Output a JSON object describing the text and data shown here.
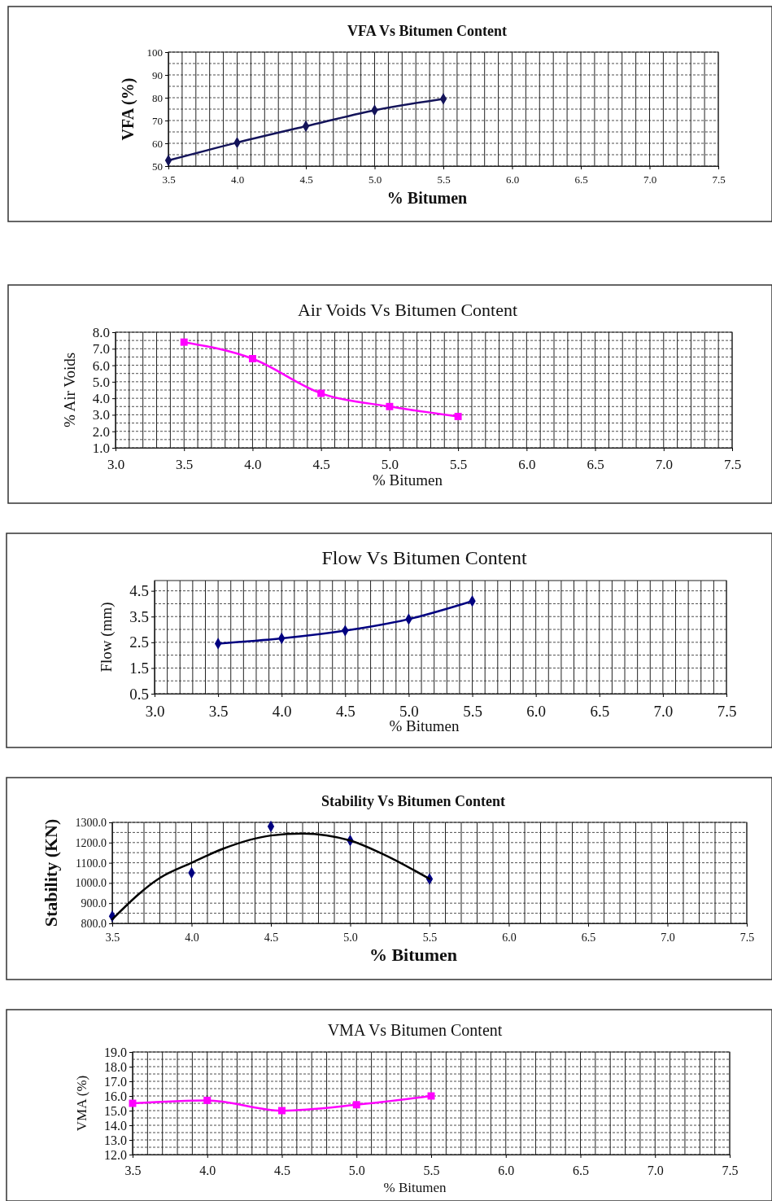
{
  "chart_data": [
    {
      "type": "line",
      "title": "VFA Vs Bitumen Content",
      "xlabel": "% Bitumen",
      "ylabel": "VFA (%)",
      "grid": true,
      "xlim": [
        3.5,
        7.5
      ],
      "ylim": [
        50,
        100
      ],
      "xticks": [
        {
          "value": 3.5,
          "label": "3.5"
        },
        {
          "value": 3.6,
          "label": null
        },
        {
          "value": 3.7,
          "label": null
        },
        {
          "value": 3.8,
          "label": null
        },
        {
          "value": 3.9,
          "label": null
        },
        {
          "value": 4.0,
          "label": "4.0"
        },
        {
          "value": 4.1,
          "label": null
        },
        {
          "value": 4.2,
          "label": null
        },
        {
          "value": 4.3,
          "label": null
        },
        {
          "value": 4.4,
          "label": null
        },
        {
          "value": 4.5,
          "label": "4.5"
        },
        {
          "value": 4.6,
          "label": null
        },
        {
          "value": 4.7,
          "label": null
        },
        {
          "value": 4.8,
          "label": null
        },
        {
          "value": 4.9,
          "label": null
        },
        {
          "value": 5.0,
          "label": "5.0"
        },
        {
          "value": 5.1,
          "label": null
        },
        {
          "value": 5.2,
          "label": null
        },
        {
          "value": 5.3,
          "label": null
        },
        {
          "value": 5.4,
          "label": null
        },
        {
          "value": 5.5,
          "label": "5.5"
        },
        {
          "value": 5.6,
          "label": null
        },
        {
          "value": 5.7,
          "label": null
        },
        {
          "value": 5.8,
          "label": null
        },
        {
          "value": 5.9,
          "label": null
        },
        {
          "value": 6.0,
          "label": "6.0"
        },
        {
          "value": 6.1,
          "label": null
        },
        {
          "value": 6.2,
          "label": null
        },
        {
          "value": 6.3,
          "label": null
        },
        {
          "value": 6.4,
          "label": null
        },
        {
          "value": 6.5,
          "label": "6.5"
        },
        {
          "value": 6.6,
          "label": null
        },
        {
          "value": 6.7,
          "label": null
        },
        {
          "value": 6.8,
          "label": null
        },
        {
          "value": 6.9,
          "label": null
        },
        {
          "value": 7.0,
          "label": "7.0"
        },
        {
          "value": 7.1,
          "label": null
        },
        {
          "value": 7.2,
          "label": null
        },
        {
          "value": 7.3,
          "label": null
        },
        {
          "value": 7.4,
          "label": null
        },
        {
          "value": 7.5,
          "label": "7.5"
        }
      ],
      "yticks": [
        50,
        {
          "value": 55,
          "label": null
        },
        60,
        {
          "value": 65,
          "label": null
        },
        70,
        {
          "value": 75,
          "label": null
        },
        80,
        {
          "value": 85,
          "label": null
        },
        90,
        {
          "value": 95,
          "label": null
        },
        100
      ],
      "series": [
        {
          "color": "#14145a",
          "marker": "diamond",
          "x": [
            3.5,
            4.0,
            4.5,
            5.0,
            5.5
          ],
          "values": [
            52.5,
            60.3,
            67.5,
            74.5,
            79.5
          ]
        }
      ]
    },
    {
      "type": "line",
      "title": "Air Voids Vs Bitumen Content",
      "xlabel": "% Bitumen",
      "ylabel": "% Air Voids",
      "grid": true,
      "xlim": [
        3.0,
        7.5
      ],
      "ylim": [
        1.0,
        8.0
      ],
      "xticks": [
        {
          "value": 3.0,
          "label": "3.0"
        },
        {
          "value": 3.1,
          "label": null
        },
        {
          "value": 3.2,
          "label": null
        },
        {
          "value": 3.3,
          "label": null
        },
        {
          "value": 3.4,
          "label": null
        },
        {
          "value": 3.5,
          "label": "3.5"
        },
        {
          "value": 3.6,
          "label": null
        },
        {
          "value": 3.7,
          "label": null
        },
        {
          "value": 3.8,
          "label": null
        },
        {
          "value": 3.9,
          "label": null
        },
        {
          "value": 4.0,
          "label": "4.0"
        },
        {
          "value": 4.1,
          "label": null
        },
        {
          "value": 4.2,
          "label": null
        },
        {
          "value": 4.3,
          "label": null
        },
        {
          "value": 4.4,
          "label": null
        },
        {
          "value": 4.5,
          "label": "4.5"
        },
        {
          "value": 4.6,
          "label": null
        },
        {
          "value": 4.7,
          "label": null
        },
        {
          "value": 4.8,
          "label": null
        },
        {
          "value": 4.9,
          "label": null
        },
        {
          "value": 5.0,
          "label": "5.0"
        },
        {
          "value": 5.1,
          "label": null
        },
        {
          "value": 5.2,
          "label": null
        },
        {
          "value": 5.3,
          "label": null
        },
        {
          "value": 5.4,
          "label": null
        },
        {
          "value": 5.5,
          "label": "5.5"
        },
        {
          "value": 5.6,
          "label": null
        },
        {
          "value": 5.7,
          "label": null
        },
        {
          "value": 5.8,
          "label": null
        },
        {
          "value": 5.9,
          "label": null
        },
        {
          "value": 6.0,
          "label": "6.0"
        },
        {
          "value": 6.1,
          "label": null
        },
        {
          "value": 6.2,
          "label": null
        },
        {
          "value": 6.3,
          "label": null
        },
        {
          "value": 6.4,
          "label": null
        },
        {
          "value": 6.5,
          "label": "6.5"
        },
        {
          "value": 6.6,
          "label": null
        },
        {
          "value": 6.7,
          "label": null
        },
        {
          "value": 6.8,
          "label": null
        },
        {
          "value": 6.9,
          "label": null
        },
        {
          "value": 7.0,
          "label": "7.0"
        },
        {
          "value": 7.1,
          "label": null
        },
        {
          "value": 7.2,
          "label": null
        },
        {
          "value": 7.3,
          "label": null
        },
        {
          "value": 7.4,
          "label": null
        },
        {
          "value": 7.5,
          "label": "7.5"
        }
      ],
      "yticks": [
        {
          "value": 1.0,
          "label": "1.0"
        },
        {
          "value": 1.5,
          "label": null
        },
        {
          "value": 2.0,
          "label": "2.0"
        },
        {
          "value": 2.5,
          "label": null
        },
        {
          "value": 3.0,
          "label": "3.0"
        },
        {
          "value": 3.5,
          "label": null
        },
        {
          "value": 4.0,
          "label": "4.0"
        },
        {
          "value": 4.5,
          "label": null
        },
        {
          "value": 5.0,
          "label": "5.0"
        },
        {
          "value": 5.5,
          "label": null
        },
        {
          "value": 6.0,
          "label": "6.0"
        },
        {
          "value": 6.5,
          "label": null
        },
        {
          "value": 7.0,
          "label": "7.0"
        },
        {
          "value": 7.5,
          "label": null
        },
        {
          "value": 8.0,
          "label": "8.0"
        }
      ],
      "series": [
        {
          "color": "#ff00ff",
          "marker": "square",
          "x": [
            3.5,
            4.0,
            4.5,
            5.0,
            5.5
          ],
          "values": [
            7.4,
            6.4,
            4.3,
            3.5,
            2.9
          ]
        }
      ]
    },
    {
      "type": "line",
      "title": "Flow Vs Bitumen Content",
      "xlabel": "% Bitumen",
      "ylabel": "Flow (mm)",
      "grid": true,
      "xlim": [
        3.0,
        7.5
      ],
      "ylim": [
        0.5,
        4.9
      ],
      "xticks": [
        {
          "value": 3.0,
          "label": "3.0"
        },
        {
          "value": 3.1,
          "label": null
        },
        {
          "value": 3.2,
          "label": null
        },
        {
          "value": 3.3,
          "label": null
        },
        {
          "value": 3.4,
          "label": null
        },
        {
          "value": 3.5,
          "label": "3.5"
        },
        {
          "value": 3.6,
          "label": null
        },
        {
          "value": 3.7,
          "label": null
        },
        {
          "value": 3.8,
          "label": null
        },
        {
          "value": 3.9,
          "label": null
        },
        {
          "value": 4.0,
          "label": "4.0"
        },
        {
          "value": 4.1,
          "label": null
        },
        {
          "value": 4.2,
          "label": null
        },
        {
          "value": 4.3,
          "label": null
        },
        {
          "value": 4.4,
          "label": null
        },
        {
          "value": 4.5,
          "label": "4.5"
        },
        {
          "value": 4.6,
          "label": null
        },
        {
          "value": 4.7,
          "label": null
        },
        {
          "value": 4.8,
          "label": null
        },
        {
          "value": 4.9,
          "label": null
        },
        {
          "value": 5.0,
          "label": "5.0"
        },
        {
          "value": 5.1,
          "label": null
        },
        {
          "value": 5.2,
          "label": null
        },
        {
          "value": 5.3,
          "label": null
        },
        {
          "value": 5.4,
          "label": null
        },
        {
          "value": 5.5,
          "label": "5.5"
        },
        {
          "value": 5.6,
          "label": null
        },
        {
          "value": 5.7,
          "label": null
        },
        {
          "value": 5.8,
          "label": null
        },
        {
          "value": 5.9,
          "label": null
        },
        {
          "value": 6.0,
          "label": "6.0"
        },
        {
          "value": 6.1,
          "label": null
        },
        {
          "value": 6.2,
          "label": null
        },
        {
          "value": 6.3,
          "label": null
        },
        {
          "value": 6.4,
          "label": null
        },
        {
          "value": 6.5,
          "label": "6.5"
        },
        {
          "value": 6.6,
          "label": null
        },
        {
          "value": 6.7,
          "label": null
        },
        {
          "value": 6.8,
          "label": null
        },
        {
          "value": 6.9,
          "label": null
        },
        {
          "value": 7.0,
          "label": "7.0"
        },
        {
          "value": 7.1,
          "label": null
        },
        {
          "value": 7.2,
          "label": null
        },
        {
          "value": 7.3,
          "label": null
        },
        {
          "value": 7.4,
          "label": null
        },
        {
          "value": 7.5,
          "label": "7.5"
        }
      ],
      "yticks": [
        0.5,
        {
          "value": 1.0,
          "label": null
        },
        1.5,
        {
          "value": 2.0,
          "label": null
        },
        2.5,
        {
          "value": 3.0,
          "label": null
        },
        3.5,
        {
          "value": 4.0,
          "label": null
        },
        4.5
      ],
      "series": [
        {
          "color": "#000080",
          "marker": "diamond",
          "x": [
            3.5,
            4.0,
            4.5,
            5.0,
            5.5
          ],
          "values": [
            2.45,
            2.65,
            2.95,
            3.4,
            4.1
          ]
        }
      ]
    },
    {
      "type": "scatter",
      "title": "Stability Vs Bitumen Content",
      "xlabel": "% Bitumen",
      "ylabel": "Stability (KN)",
      "grid": true,
      "xlim": [
        3.5,
        7.5
      ],
      "ylim": [
        800,
        1300
      ],
      "xticks": [
        {
          "value": 3.5,
          "label": "3.5"
        },
        {
          "value": 3.6,
          "label": null
        },
        {
          "value": 3.7,
          "label": null
        },
        {
          "value": 3.8,
          "label": null
        },
        {
          "value": 3.9,
          "label": null
        },
        {
          "value": 4.0,
          "label": "4.0"
        },
        {
          "value": 4.1,
          "label": null
        },
        {
          "value": 4.2,
          "label": null
        },
        {
          "value": 4.3,
          "label": null
        },
        {
          "value": 4.4,
          "label": null
        },
        {
          "value": 4.5,
          "label": "4.5"
        },
        {
          "value": 4.6,
          "label": null
        },
        {
          "value": 4.7,
          "label": null
        },
        {
          "value": 4.8,
          "label": null
        },
        {
          "value": 4.9,
          "label": null
        },
        {
          "value": 5.0,
          "label": "5.0"
        },
        {
          "value": 5.1,
          "label": null
        },
        {
          "value": 5.2,
          "label": null
        },
        {
          "value": 5.3,
          "label": null
        },
        {
          "value": 5.4,
          "label": null
        },
        {
          "value": 5.5,
          "label": "5.5"
        },
        {
          "value": 5.6,
          "label": null
        },
        {
          "value": 5.7,
          "label": null
        },
        {
          "value": 5.8,
          "label": null
        },
        {
          "value": 5.9,
          "label": null
        },
        {
          "value": 6.0,
          "label": "6.0"
        },
        {
          "value": 6.1,
          "label": null
        },
        {
          "value": 6.2,
          "label": null
        },
        {
          "value": 6.3,
          "label": null
        },
        {
          "value": 6.4,
          "label": null
        },
        {
          "value": 6.5,
          "label": "6.5"
        },
        {
          "value": 6.6,
          "label": null
        },
        {
          "value": 6.7,
          "label": null
        },
        {
          "value": 6.8,
          "label": null
        },
        {
          "value": 6.9,
          "label": null
        },
        {
          "value": 7.0,
          "label": "7.0"
        },
        {
          "value": 7.1,
          "label": null
        },
        {
          "value": 7.2,
          "label": null
        },
        {
          "value": 7.3,
          "label": null
        },
        {
          "value": 7.4,
          "label": null
        },
        {
          "value": 7.5,
          "label": "7.5"
        }
      ],
      "yticks": [
        {
          "value": 800,
          "label": "800.0"
        },
        {
          "value": 850,
          "label": null
        },
        {
          "value": 900,
          "label": "900.0"
        },
        {
          "value": 950,
          "label": null
        },
        {
          "value": 1000,
          "label": "1000.0"
        },
        {
          "value": 1050,
          "label": null
        },
        {
          "value": 1100,
          "label": "1100.0"
        },
        {
          "value": 1150,
          "label": null
        },
        {
          "value": 1200,
          "label": "1200.0"
        },
        {
          "value": 1250,
          "label": null
        },
        {
          "value": 1300,
          "label": "1300.0"
        }
      ],
      "series": [
        {
          "color": "#000080",
          "marker": "diamond",
          "x": [
            3.5,
            4.0,
            4.5,
            5.0,
            5.5
          ],
          "values": [
            835,
            1050,
            1280,
            1210,
            1020
          ]
        },
        {
          "type": "line",
          "color": "#000000",
          "marker": "none",
          "x": [
            3.5,
            3.8,
            4.0,
            4.2,
            4.5,
            4.7,
            5.0,
            5.2,
            5.5
          ],
          "values": [
            820,
            1025,
            1100,
            1170,
            1235,
            1245,
            1210,
            1145,
            1020
          ]
        }
      ]
    },
    {
      "type": "line",
      "title": "VMA Vs Bitumen Content",
      "xlabel": "% Bitumen",
      "ylabel": "VMA (%)",
      "grid": true,
      "xlim": [
        3.5,
        7.5
      ],
      "ylim": [
        12.0,
        19.0
      ],
      "xticks": [
        {
          "value": 3.5,
          "label": "3.5"
        },
        {
          "value": 3.6,
          "label": null
        },
        {
          "value": 3.7,
          "label": null
        },
        {
          "value": 3.8,
          "label": null
        },
        {
          "value": 3.9,
          "label": null
        },
        {
          "value": 4.0,
          "label": "4.0"
        },
        {
          "value": 4.1,
          "label": null
        },
        {
          "value": 4.2,
          "label": null
        },
        {
          "value": 4.3,
          "label": null
        },
        {
          "value": 4.4,
          "label": null
        },
        {
          "value": 4.5,
          "label": "4.5"
        },
        {
          "value": 4.6,
          "label": null
        },
        {
          "value": 4.7,
          "label": null
        },
        {
          "value": 4.8,
          "label": null
        },
        {
          "value": 4.9,
          "label": null
        },
        {
          "value": 5.0,
          "label": "5.0"
        },
        {
          "value": 5.1,
          "label": null
        },
        {
          "value": 5.2,
          "label": null
        },
        {
          "value": 5.3,
          "label": null
        },
        {
          "value": 5.4,
          "label": null
        },
        {
          "value": 5.5,
          "label": "5.5"
        },
        {
          "value": 5.6,
          "label": null
        },
        {
          "value": 5.7,
          "label": null
        },
        {
          "value": 5.8,
          "label": null
        },
        {
          "value": 5.9,
          "label": null
        },
        {
          "value": 6.0,
          "label": "6.0"
        },
        {
          "value": 6.1,
          "label": null
        },
        {
          "value": 6.2,
          "label": null
        },
        {
          "value": 6.3,
          "label": null
        },
        {
          "value": 6.4,
          "label": null
        },
        {
          "value": 6.5,
          "label": "6.5"
        },
        {
          "value": 6.6,
          "label": null
        },
        {
          "value": 6.7,
          "label": null
        },
        {
          "value": 6.8,
          "label": null
        },
        {
          "value": 6.9,
          "label": null
        },
        {
          "value": 7.0,
          "label": "7.0"
        },
        {
          "value": 7.1,
          "label": null
        },
        {
          "value": 7.2,
          "label": null
        },
        {
          "value": 7.3,
          "label": null
        },
        {
          "value": 7.4,
          "label": null
        },
        {
          "value": 7.5,
          "label": "7.5"
        }
      ],
      "yticks": [
        {
          "value": 12.0,
          "label": "12.0"
        },
        {
          "value": 12.5,
          "label": null
        },
        {
          "value": 13.0,
          "label": "13.0"
        },
        {
          "value": 13.5,
          "label": null
        },
        {
          "value": 14.0,
          "label": "14.0"
        },
        {
          "value": 14.5,
          "label": null
        },
        {
          "value": 15.0,
          "label": "15.0"
        },
        {
          "value": 15.5,
          "label": null
        },
        {
          "value": 16.0,
          "label": "16.0"
        },
        {
          "value": 16.5,
          "label": null
        },
        {
          "value": 17.0,
          "label": "17.0"
        },
        {
          "value": 17.5,
          "label": null
        },
        {
          "value": 18.0,
          "label": "18.0"
        },
        {
          "value": 18.5,
          "label": null
        },
        {
          "value": 19.0,
          "label": "19.0"
        }
      ],
      "series": [
        {
          "color": "#ff00ff",
          "marker": "square",
          "x": [
            3.5,
            4.0,
            4.5,
            5.0,
            5.5
          ],
          "values": [
            15.5,
            15.7,
            15.0,
            15.4,
            16.0
          ]
        }
      ]
    }
  ]
}
